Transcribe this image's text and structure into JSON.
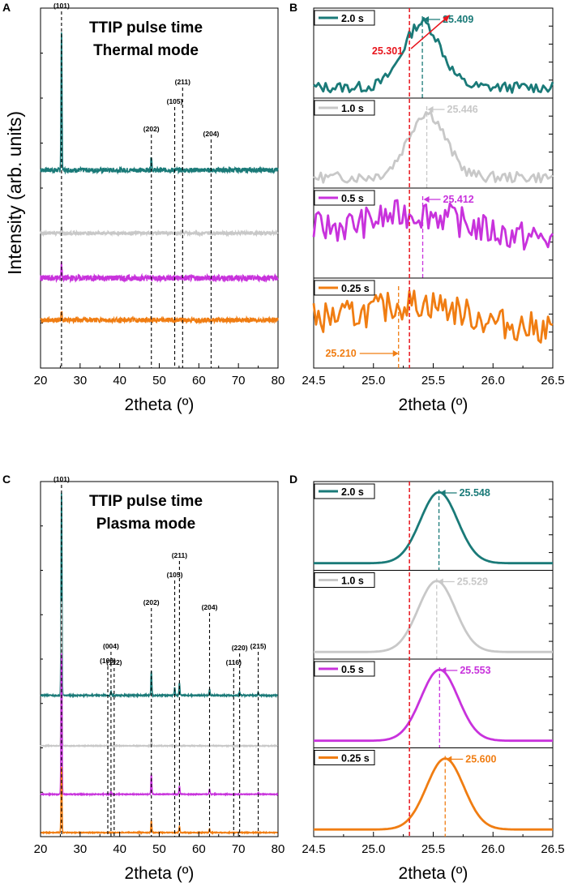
{
  "figure": {
    "y_axis_label": "Intensity (arb. units)",
    "colors": {
      "2.0 s": "#1a7a78",
      "1.0 s": "#c8c8c8",
      "0.5 s": "#c832dc",
      "0.25 s": "#f07d12",
      "reference": "#e8141c",
      "axis": "#000000"
    }
  },
  "chart_data": [
    {
      "panel": "A",
      "type": "line",
      "title": "TTIP pulse time",
      "subtitle": "Thermal mode",
      "xlabel": "2theta (º)",
      "xlim": [
        20,
        80
      ],
      "xticks": [
        20,
        30,
        40,
        50,
        60,
        70,
        80
      ],
      "yticks_labeled": false,
      "reflections": [
        {
          "label": "(101)",
          "x": 25.3
        },
        {
          "label": "(202)",
          "x": 48.0
        },
        {
          "label": "(105)",
          "x": 53.9
        },
        {
          "label": "(211)",
          "x": 55.9
        },
        {
          "label": "(204)",
          "x": 63.1
        }
      ],
      "series": [
        {
          "name": "2.0 s",
          "baseline": 6.6,
          "noise": 0.08,
          "peaks": [
            [
              25.3,
              4.7
            ],
            [
              48.0,
              0.5
            ]
          ]
        },
        {
          "name": "1.0 s",
          "baseline": 4.5,
          "noise": 0.06,
          "peaks": [
            [
              25.3,
              0.25
            ]
          ]
        },
        {
          "name": "0.5 s",
          "baseline": 3.0,
          "noise": 0.1,
          "peaks": [
            [
              25.3,
              0.5
            ]
          ]
        },
        {
          "name": "0.25 s",
          "baseline": 1.6,
          "noise": 0.08,
          "peaks": [
            [
              25.3,
              0.35
            ]
          ]
        }
      ]
    },
    {
      "panel": "B",
      "type": "line",
      "xlabel": "2theta (º)",
      "xlim": [
        24.5,
        26.5
      ],
      "xticks": [
        24.5,
        25.0,
        25.5,
        26.0,
        26.5
      ],
      "reference_line": {
        "x": 25.301,
        "label": "25.301"
      },
      "series": [
        {
          "name": "2.0 s",
          "peak_label": "25.409",
          "peak_x": 25.409,
          "shape": "gaussian-noisy"
        },
        {
          "name": "1.0 s",
          "peak_label": "25.446",
          "peak_x": 25.446,
          "shape": "gaussian-noisy"
        },
        {
          "name": "0.5 s",
          "peak_label": "25.412",
          "peak_x": 25.412,
          "shape": "noisy"
        },
        {
          "name": "0.25 s",
          "peak_label": "25.210",
          "peak_x": 25.21,
          "shape": "noisy"
        }
      ]
    },
    {
      "panel": "C",
      "type": "line",
      "title": "TTIP pulse time",
      "subtitle": "Plasma mode",
      "xlabel": "2theta (º)",
      "xlim": [
        20,
        80
      ],
      "xticks": [
        20,
        30,
        40,
        50,
        60,
        70,
        80
      ],
      "reflections": [
        {
          "label": "(101)",
          "x": 25.3
        },
        {
          "label": "(103)",
          "x": 37.0
        },
        {
          "label": "(004)",
          "x": 37.8
        },
        {
          "label": "(112)",
          "x": 38.6
        },
        {
          "label": "(202)",
          "x": 48.0
        },
        {
          "label": "(105)",
          "x": 53.9
        },
        {
          "label": "(211)",
          "x": 55.1
        },
        {
          "label": "(204)",
          "x": 62.7
        },
        {
          "label": "(116)",
          "x": 68.8
        },
        {
          "label": "(220)",
          "x": 70.3
        },
        {
          "label": "(215)",
          "x": 75.0
        }
      ],
      "series": [
        {
          "name": "2.0 s",
          "baseline": 7.0,
          "noise": 0.03,
          "peaks": [
            [
              25.3,
              10.2
            ],
            [
              37.8,
              0.2
            ],
            [
              48.0,
              1.2
            ],
            [
              53.9,
              0.4
            ],
            [
              55.1,
              0.6
            ],
            [
              62.7,
              0.3
            ],
            [
              70.3,
              0.2
            ],
            [
              75.0,
              0.15
            ]
          ]
        },
        {
          "name": "1.0 s",
          "baseline": 4.5,
          "noise": 0.02,
          "peaks": [
            [
              25.3,
              7.3
            ],
            [
              48.0,
              0.3
            ]
          ]
        },
        {
          "name": "0.5 s",
          "baseline": 2.1,
          "noise": 0.02,
          "peaks": [
            [
              25.3,
              7.1
            ],
            [
              37.8,
              0.15
            ],
            [
              48.0,
              1.0
            ],
            [
              55.1,
              0.4
            ],
            [
              62.7,
              0.25
            ],
            [
              75.0,
              0.1
            ]
          ]
        },
        {
          "name": "0.25 s",
          "baseline": 0.2,
          "noise": 0.02,
          "peaks": [
            [
              25.3,
              3.3
            ],
            [
              48.0,
              0.6
            ],
            [
              55.1,
              0.3
            ],
            [
              62.7,
              0.2
            ]
          ]
        }
      ]
    },
    {
      "panel": "D",
      "type": "line",
      "xlabel": "2theta (º)",
      "xlim": [
        24.5,
        26.5
      ],
      "xticks": [
        24.5,
        25.0,
        25.5,
        26.0,
        26.5
      ],
      "reference_line": {
        "x": 25.301
      },
      "series": [
        {
          "name": "2.0 s",
          "peak_label": "25.548",
          "peak_x": 25.548,
          "width": 0.22
        },
        {
          "name": "1.0 s",
          "peak_label": "25.529",
          "peak_x": 25.529,
          "width": 0.22
        },
        {
          "name": "0.5 s",
          "peak_label": "25.553",
          "peak_x": 25.553,
          "width": 0.22
        },
        {
          "name": "0.25 s",
          "peak_label": "25.600",
          "peak_x": 25.6,
          "width": 0.22
        }
      ]
    }
  ]
}
